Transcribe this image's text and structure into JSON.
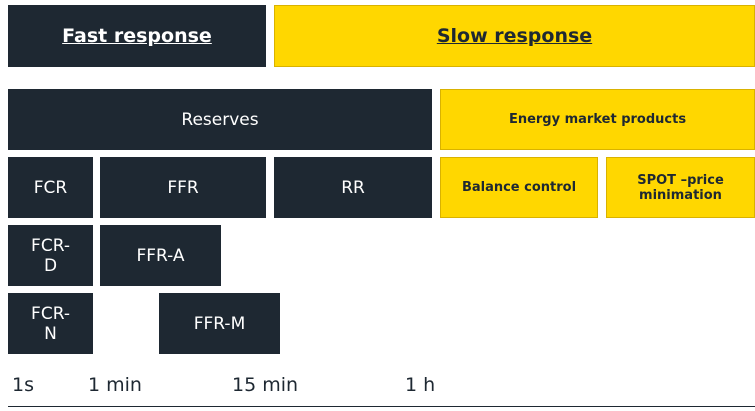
{
  "header": {
    "fast": "Fast response",
    "slow": "Slow response"
  },
  "row1": {
    "reserves": "Reserves",
    "energy": "Energy market products"
  },
  "row2": {
    "fcr": "FCR",
    "ffr": "FFR",
    "rr": "RR",
    "balance": "Balance control",
    "spot": "SPOT –price minimation"
  },
  "row3": {
    "fcr_d": "FCR-D",
    "ffr_a": "FFR-A"
  },
  "row4": {
    "fcr_n": "FCR-N",
    "ffr_m": "FFR-M"
  },
  "timeline": [
    "1s",
    "1 min",
    "15 min",
    "1 h"
  ]
}
